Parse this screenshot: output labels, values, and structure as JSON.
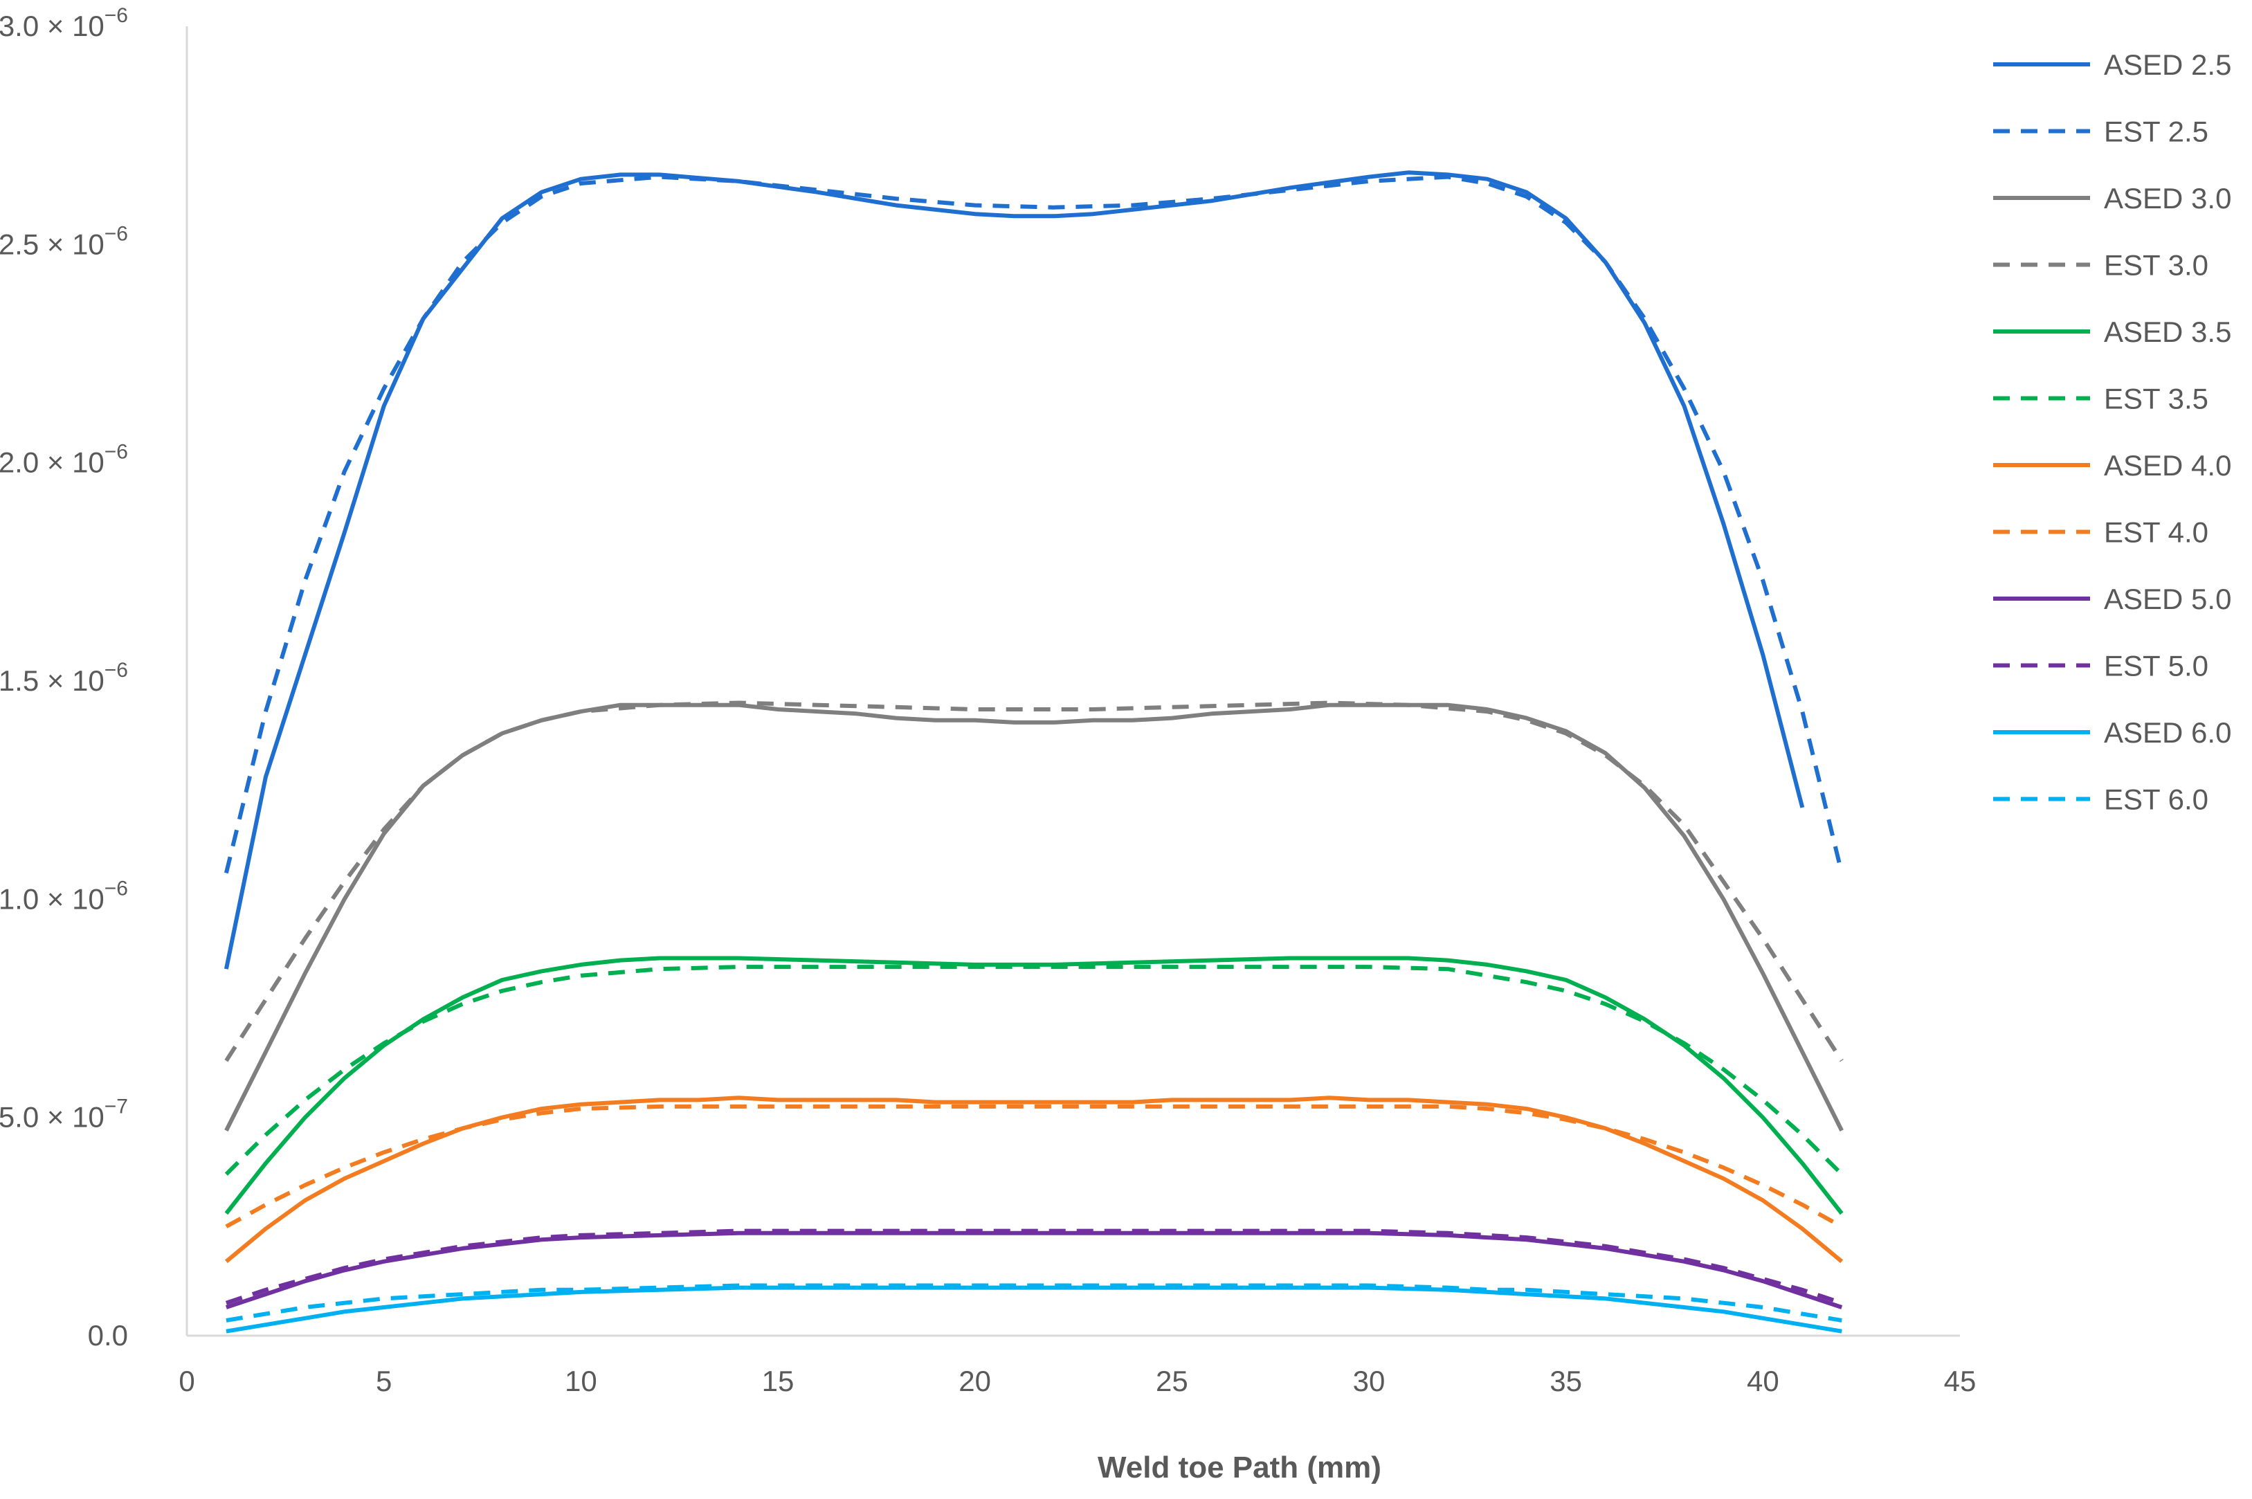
{
  "chart_data": {
    "type": "line",
    "title": "",
    "xlabel": "Weld toe Path (mm)",
    "ylabel": "",
    "xlim": [
      0,
      45
    ],
    "ylim": [
      0,
      3e-06
    ],
    "x_ticks": [
      "0",
      "5",
      "10",
      "15",
      "20",
      "25",
      "30",
      "35",
      "40",
      "45"
    ],
    "x_tick_values": [
      0,
      5,
      10,
      15,
      20,
      25,
      30,
      35,
      40,
      45
    ],
    "y_ticks": [
      {
        "value": 0,
        "mantissa": "0.0",
        "exponent": ""
      },
      {
        "value": 5e-07,
        "mantissa": "5.0 × 10",
        "exponent": "−7"
      },
      {
        "value": 1e-06,
        "mantissa": "1.0 × 10",
        "exponent": "−6"
      },
      {
        "value": 1.5e-06,
        "mantissa": "1.5 × 10",
        "exponent": "−6"
      },
      {
        "value": 2e-06,
        "mantissa": "2.0 × 10",
        "exponent": "−6"
      },
      {
        "value": 2.5e-06,
        "mantissa": "2.5 × 10",
        "exponent": "−6"
      },
      {
        "value": 3e-06,
        "mantissa": "3.0 × 10",
        "exponent": "−6"
      }
    ],
    "grid": false,
    "legend_position": "right",
    "series": [
      {
        "name": "ASED 2.5",
        "color": "#1F6FD0",
        "dash": false,
        "x": [
          1,
          2,
          4,
          5,
          6,
          8,
          9,
          10,
          11,
          12,
          14,
          16,
          18,
          20,
          21,
          22,
          23,
          25,
          26,
          28,
          30,
          31,
          32,
          33,
          34,
          35,
          36,
          37,
          38,
          39,
          40,
          41
        ],
        "y": [
          8.4e-07,
          1.28e-06,
          1.84e-06,
          2.13e-06,
          2.33e-06,
          2.56e-06,
          2.62e-06,
          2.65e-06,
          2.66e-06,
          2.66e-06,
          2.645e-06,
          2.62e-06,
          2.59e-06,
          2.57e-06,
          2.565e-06,
          2.565e-06,
          2.57e-06,
          2.59e-06,
          2.6e-06,
          2.63e-06,
          2.655e-06,
          2.665e-06,
          2.66e-06,
          2.65e-06,
          2.62e-06,
          2.56e-06,
          2.46e-06,
          2.32e-06,
          2.13e-06,
          1.86e-06,
          1.56e-06,
          1.21e-06
        ]
      },
      {
        "name": "EST 2.5",
        "color": "#1F6FD0",
        "dash": true,
        "x": [
          1,
          2,
          3,
          4,
          5,
          6,
          7,
          8,
          9,
          10,
          12,
          14,
          16,
          18,
          20,
          22,
          24,
          26,
          28,
          30,
          32,
          33,
          34,
          35,
          36,
          37,
          38,
          39,
          40,
          41,
          42
        ],
        "y": [
          1.06e-06,
          1.43e-06,
          1.73e-06,
          1.98e-06,
          2.17e-06,
          2.33e-06,
          2.46e-06,
          2.55e-06,
          2.61e-06,
          2.64e-06,
          2.655e-06,
          2.645e-06,
          2.625e-06,
          2.605e-06,
          2.59e-06,
          2.585e-06,
          2.59e-06,
          2.605e-06,
          2.625e-06,
          2.645e-06,
          2.655e-06,
          2.64e-06,
          2.61e-06,
          2.55e-06,
          2.46e-06,
          2.33e-06,
          2.17e-06,
          1.98e-06,
          1.73e-06,
          1.43e-06,
          1.06e-06
        ]
      },
      {
        "name": "ASED 3.0",
        "color": "#7F7F7F",
        "dash": false,
        "x": [
          1,
          2,
          3,
          4,
          5,
          6,
          7,
          8,
          9,
          10,
          11,
          12,
          13,
          14,
          15,
          16,
          17,
          18,
          19,
          20,
          21,
          22,
          23,
          24,
          25,
          26,
          27,
          28,
          29,
          30,
          31,
          32,
          33,
          34,
          35,
          36,
          37,
          38,
          39,
          40,
          41,
          42
        ],
        "y": [
          4.7e-07,
          6.5e-07,
          8.3e-07,
          1e-06,
          1.15e-06,
          1.26e-06,
          1.33e-06,
          1.38e-06,
          1.41e-06,
          1.43e-06,
          1.445e-06,
          1.445e-06,
          1.445e-06,
          1.445e-06,
          1.435e-06,
          1.43e-06,
          1.425e-06,
          1.415e-06,
          1.41e-06,
          1.41e-06,
          1.405e-06,
          1.405e-06,
          1.41e-06,
          1.41e-06,
          1.415e-06,
          1.425e-06,
          1.43e-06,
          1.435e-06,
          1.445e-06,
          1.445e-06,
          1.445e-06,
          1.445e-06,
          1.435e-06,
          1.415e-06,
          1.385e-06,
          1.335e-06,
          1.255e-06,
          1.145e-06,
          1e-06,
          8.3e-07,
          6.5e-07,
          4.7e-07
        ]
      },
      {
        "name": "EST 3.0",
        "color": "#7F7F7F",
        "dash": true,
        "x": [
          1,
          2,
          3,
          4,
          5,
          6,
          7,
          8,
          9,
          10,
          12,
          14,
          16,
          18,
          20,
          21.5,
          23,
          25,
          27,
          29,
          31,
          33,
          34,
          35,
          36,
          37,
          38,
          39,
          40,
          41,
          42
        ],
        "y": [
          6.3e-07,
          7.7e-07,
          9.1e-07,
          1.04e-06,
          1.16e-06,
          1.26e-06,
          1.33e-06,
          1.38e-06,
          1.41e-06,
          1.43e-06,
          1.445e-06,
          1.45e-06,
          1.445e-06,
          1.44e-06,
          1.435e-06,
          1.435e-06,
          1.435e-06,
          1.44e-06,
          1.445e-06,
          1.45e-06,
          1.445e-06,
          1.43e-06,
          1.41e-06,
          1.38e-06,
          1.33e-06,
          1.26e-06,
          1.17e-06,
          1.04e-06,
          9.1e-07,
          7.7e-07,
          6.3e-07
        ]
      },
      {
        "name": "ASED 3.5",
        "color": "#00B050",
        "dash": false,
        "x": [
          1,
          2,
          3,
          4,
          5,
          6,
          7,
          8,
          9,
          10,
          11,
          12,
          14,
          16,
          18,
          20,
          22,
          24,
          26,
          28,
          30,
          31,
          32,
          33,
          34,
          35,
          36,
          37,
          38,
          39,
          40,
          41,
          42
        ],
        "y": [
          2.8e-07,
          3.95e-07,
          5e-07,
          5.9e-07,
          6.65e-07,
          7.25e-07,
          7.75e-07,
          8.15e-07,
          8.35e-07,
          8.5e-07,
          8.6e-07,
          8.65e-07,
          8.65e-07,
          8.6e-07,
          8.55e-07,
          8.5e-07,
          8.5e-07,
          8.55e-07,
          8.6e-07,
          8.65e-07,
          8.65e-07,
          8.65e-07,
          8.6e-07,
          8.5e-07,
          8.35e-07,
          8.15e-07,
          7.75e-07,
          7.25e-07,
          6.65e-07,
          5.9e-07,
          5e-07,
          3.95e-07,
          2.8e-07
        ]
      },
      {
        "name": "EST 3.5",
        "color": "#00B050",
        "dash": true,
        "x": [
          1,
          2,
          3,
          4,
          5,
          6,
          7,
          8,
          9,
          10,
          12,
          14,
          16,
          18,
          20,
          22,
          24,
          26,
          28,
          30,
          32,
          33,
          34,
          35,
          36,
          37,
          38,
          39,
          40,
          41,
          42
        ],
        "y": [
          3.7e-07,
          4.6e-07,
          5.4e-07,
          6.1e-07,
          6.7e-07,
          7.2e-07,
          7.6e-07,
          7.9e-07,
          8.1e-07,
          8.25e-07,
          8.4e-07,
          8.45e-07,
          8.45e-07,
          8.45e-07,
          8.45e-07,
          8.45e-07,
          8.45e-07,
          8.45e-07,
          8.45e-07,
          8.45e-07,
          8.4e-07,
          8.25e-07,
          8.1e-07,
          7.9e-07,
          7.6e-07,
          7.2e-07,
          6.7e-07,
          6.1e-07,
          5.4e-07,
          4.6e-07,
          3.7e-07
        ]
      },
      {
        "name": "ASED 4.0",
        "color": "#F47C20",
        "dash": false,
        "x": [
          1,
          2,
          3,
          4,
          5,
          6,
          7,
          8,
          9,
          10,
          11,
          12,
          13,
          14,
          15,
          16,
          17,
          18,
          19,
          20,
          21,
          22,
          23,
          24,
          25,
          26,
          27,
          28,
          29,
          30,
          31,
          32,
          33,
          34,
          35,
          36,
          37,
          38,
          39,
          40,
          41,
          42
        ],
        "y": [
          1.7e-07,
          2.45e-07,
          3.1e-07,
          3.6e-07,
          4e-07,
          4.4e-07,
          4.75e-07,
          5e-07,
          5.2e-07,
          5.3e-07,
          5.35e-07,
          5.4e-07,
          5.4e-07,
          5.45e-07,
          5.4e-07,
          5.4e-07,
          5.4e-07,
          5.4e-07,
          5.35e-07,
          5.35e-07,
          5.35e-07,
          5.35e-07,
          5.35e-07,
          5.35e-07,
          5.4e-07,
          5.4e-07,
          5.4e-07,
          5.4e-07,
          5.45e-07,
          5.4e-07,
          5.4e-07,
          5.35e-07,
          5.3e-07,
          5.2e-07,
          5e-07,
          4.75e-07,
          4.4e-07,
          4e-07,
          3.6e-07,
          3.1e-07,
          2.45e-07,
          1.7e-07
        ]
      },
      {
        "name": "EST 4.0",
        "color": "#F47C20",
        "dash": true,
        "x": [
          1,
          2,
          3,
          4,
          5,
          6,
          7,
          8,
          9,
          10,
          12,
          14,
          16,
          18,
          20,
          22,
          24,
          26,
          28,
          30,
          32,
          33,
          34,
          35,
          36,
          37,
          38,
          39,
          40,
          41,
          42
        ],
        "y": [
          2.5e-07,
          3e-07,
          3.45e-07,
          3.85e-07,
          4.2e-07,
          4.5e-07,
          4.75e-07,
          4.95e-07,
          5.1e-07,
          5.2e-07,
          5.25e-07,
          5.25e-07,
          5.25e-07,
          5.25e-07,
          5.25e-07,
          5.25e-07,
          5.25e-07,
          5.25e-07,
          5.25e-07,
          5.25e-07,
          5.25e-07,
          5.2e-07,
          5.1e-07,
          4.95e-07,
          4.75e-07,
          4.5e-07,
          4.2e-07,
          3.85e-07,
          3.45e-07,
          3e-07,
          2.5e-07
        ]
      },
      {
        "name": "ASED 5.0",
        "color": "#7030A0",
        "dash": false,
        "x": [
          1,
          2,
          3,
          4,
          5,
          6,
          7,
          8,
          9,
          10,
          12,
          14,
          16,
          18,
          20,
          22,
          24,
          26,
          28,
          30,
          32,
          33,
          34,
          35,
          36,
          37,
          38,
          39,
          40,
          41,
          42
        ],
        "y": [
          6.5e-08,
          9.5e-08,
          1.25e-07,
          1.5e-07,
          1.7e-07,
          1.85e-07,
          2e-07,
          2.1e-07,
          2.2e-07,
          2.25e-07,
          2.3e-07,
          2.35e-07,
          2.35e-07,
          2.35e-07,
          2.35e-07,
          2.35e-07,
          2.35e-07,
          2.35e-07,
          2.35e-07,
          2.35e-07,
          2.3e-07,
          2.25e-07,
          2.2e-07,
          2.1e-07,
          2e-07,
          1.85e-07,
          1.7e-07,
          1.5e-07,
          1.25e-07,
          9.5e-08,
          6.5e-08
        ]
      },
      {
        "name": "EST 5.0",
        "color": "#7030A0",
        "dash": true,
        "x": [
          1,
          2,
          3,
          4,
          5,
          6,
          7,
          8,
          9,
          10,
          12,
          14,
          16,
          18,
          20,
          22,
          24,
          26,
          28,
          30,
          32,
          33,
          34,
          35,
          36,
          37,
          38,
          39,
          40,
          41,
          42
        ],
        "y": [
          7.5e-08,
          1.05e-07,
          1.3e-07,
          1.55e-07,
          1.75e-07,
          1.9e-07,
          2.05e-07,
          2.15e-07,
          2.25e-07,
          2.3e-07,
          2.35e-07,
          2.4e-07,
          2.4e-07,
          2.4e-07,
          2.4e-07,
          2.4e-07,
          2.4e-07,
          2.4e-07,
          2.4e-07,
          2.4e-07,
          2.35e-07,
          2.3e-07,
          2.25e-07,
          2.15e-07,
          2.05e-07,
          1.9e-07,
          1.75e-07,
          1.55e-07,
          1.3e-07,
          1.05e-07,
          7.5e-08
        ]
      },
      {
        "name": "ASED 6.0",
        "color": "#00B0F0",
        "dash": false,
        "x": [
          1,
          2,
          3,
          4,
          5,
          6,
          7,
          8,
          9,
          10,
          12,
          14,
          16,
          18,
          20,
          22,
          24,
          26,
          28,
          30,
          32,
          33,
          34,
          35,
          36,
          37,
          38,
          39,
          40,
          41,
          42
        ],
        "y": [
          1e-08,
          2.5e-08,
          4e-08,
          5.5e-08,
          6.5e-08,
          7.5e-08,
          8.5e-08,
          9e-08,
          9.5e-08,
          1e-07,
          1.05e-07,
          1.1e-07,
          1.1e-07,
          1.1e-07,
          1.1e-07,
          1.1e-07,
          1.1e-07,
          1.1e-07,
          1.1e-07,
          1.1e-07,
          1.05e-07,
          1e-07,
          9.5e-08,
          9e-08,
          8.5e-08,
          7.5e-08,
          6.5e-08,
          5.5e-08,
          4e-08,
          2.5e-08,
          1e-08
        ]
      },
      {
        "name": "EST 6.0",
        "color": "#00B0F0",
        "dash": true,
        "x": [
          1,
          2,
          3,
          4,
          5,
          6,
          7,
          8,
          9,
          10,
          12,
          14,
          16,
          18,
          20,
          22,
          24,
          26,
          28,
          30,
          32,
          33,
          34,
          35,
          36,
          37,
          38,
          39,
          40,
          41,
          42
        ],
        "y": [
          3.5e-08,
          5e-08,
          6.5e-08,
          7.5e-08,
          8.5e-08,
          9e-08,
          9.5e-08,
          1e-07,
          1.05e-07,
          1.05e-07,
          1.1e-07,
          1.15e-07,
          1.15e-07,
          1.15e-07,
          1.15e-07,
          1.15e-07,
          1.15e-07,
          1.15e-07,
          1.15e-07,
          1.15e-07,
          1.1e-07,
          1.05e-07,
          1.05e-07,
          1e-07,
          9.5e-08,
          9e-08,
          8.5e-08,
          7.5e-08,
          6.5e-08,
          5e-08,
          3.5e-08
        ]
      }
    ]
  }
}
